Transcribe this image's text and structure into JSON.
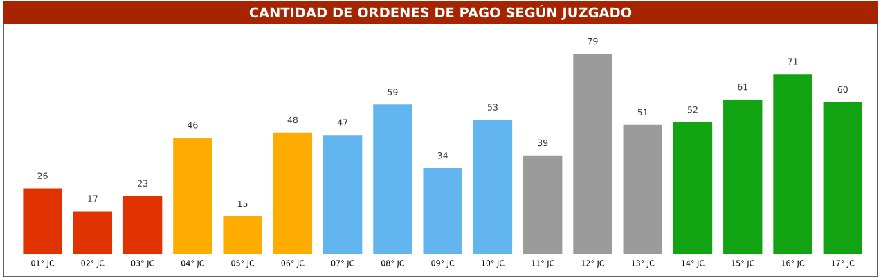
{
  "chart_data": {
    "type": "bar",
    "title": "CANTIDAD DE ORDENES DE PAGO SEGÚN JUZGADO",
    "categories": [
      "01° JC",
      "02° JC",
      "03° JC",
      "04° JC",
      "05° JC",
      "06° JC",
      "07° JC",
      "08° JC",
      "09° JC",
      "10° JC",
      "11° JC",
      "12° JC",
      "13° JC",
      "14° JC",
      "15° JC",
      "16° JC",
      "17° JC"
    ],
    "values": [
      26,
      17,
      23,
      46,
      15,
      48,
      47,
      59,
      34,
      53,
      39,
      79,
      51,
      52,
      61,
      71,
      60
    ],
    "colors": [
      "#e03300",
      "#e03300",
      "#e03300",
      "#ffab00",
      "#ffab00",
      "#ffab00",
      "#63b5f0",
      "#63b5f0",
      "#63b5f0",
      "#63b5f0",
      "#9b9b9b",
      "#9b9b9b",
      "#9b9b9b",
      "#12a312",
      "#12a312",
      "#12a312",
      "#12a312"
    ],
    "data_labels": true,
    "grid": false,
    "legend": false
  }
}
